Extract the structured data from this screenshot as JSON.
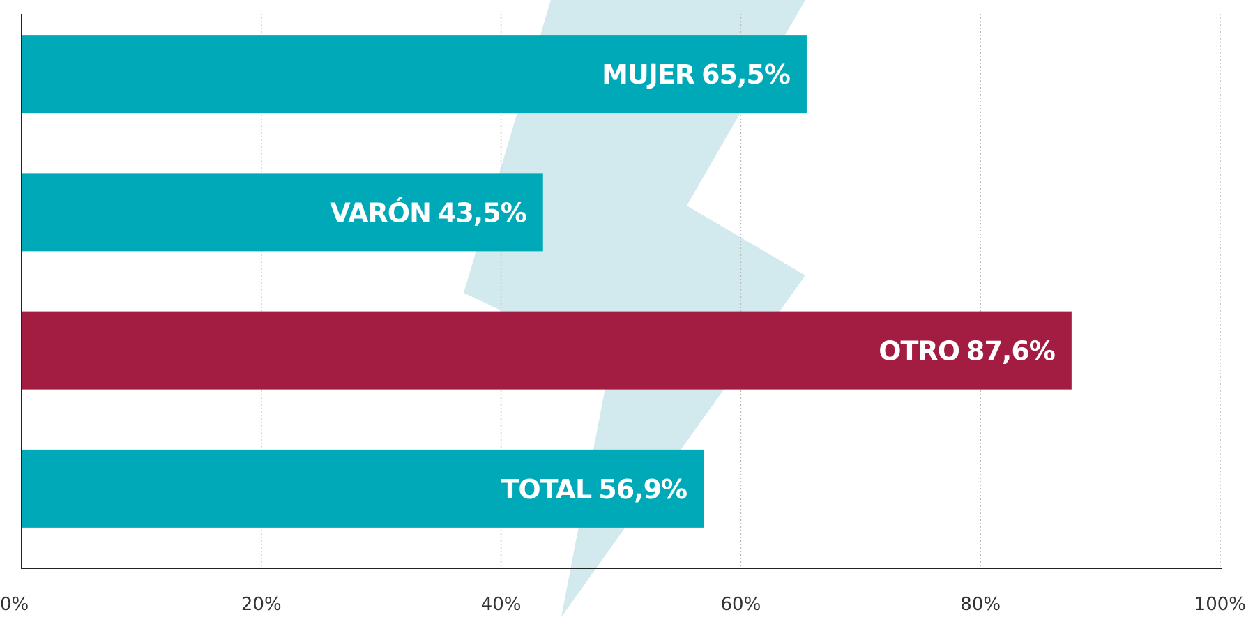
{
  "chart_data": {
    "type": "bar",
    "orientation": "horizontal",
    "categories": [
      "MUJER",
      "VARÓN",
      "OTRO",
      "TOTAL"
    ],
    "values": [
      65.5,
      43.5,
      87.6,
      56.9
    ],
    "value_labels": [
      "65,5%",
      "43,5%",
      "87,6%",
      "56,9%"
    ],
    "colors": [
      "#00a9b7",
      "#00a9b7",
      "#a31c41",
      "#00a9b7"
    ],
    "xlim": [
      0,
      100
    ],
    "xticks": [
      {
        "value": 0,
        "label": "0%"
      },
      {
        "value": 20,
        "label": "20%"
      },
      {
        "value": 40,
        "label": "40%"
      },
      {
        "value": 60,
        "label": "60%"
      },
      {
        "value": 80,
        "label": "80%"
      },
      {
        "value": 100,
        "label": "100%"
      }
    ],
    "grid": true
  }
}
